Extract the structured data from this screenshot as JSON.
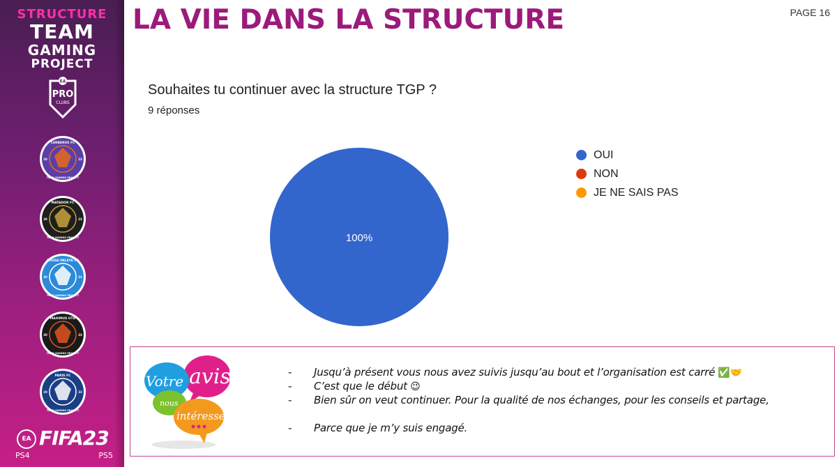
{
  "sidebar": {
    "brand": {
      "line1": "STRUCTURE",
      "line2": "TEAM",
      "line3": "GAMING",
      "line4": "PROJECT"
    },
    "pro_clubs": {
      "top": "EA",
      "text": "PRO",
      "sub": "CLUBS"
    },
    "clubs": [
      {
        "name": "CERBERUS FC",
        "year_left": "20",
        "year_right": "23",
        "ring": "TEAM GAMING PROJECT",
        "color": "#5b3fa6",
        "accent": "#e86a1c"
      },
      {
        "name": "MATADOR FC",
        "year_left": "20",
        "year_right": "23",
        "ring": "TEAM GAMING PROJECT",
        "color": "#1e1e1e",
        "accent": "#c9a23a"
      },
      {
        "name": "ROUGE PALEYE FC",
        "year_left": "20",
        "year_right": "23",
        "ring": "TEAM GAMING PROJECT",
        "color": "#2d8ad8",
        "accent": "#ffffff"
      },
      {
        "name": "MAXIMUS UTD",
        "year_left": "20",
        "year_right": "23",
        "ring": "TEAM GAMING PROJECT",
        "color": "#1a1a1a",
        "accent": "#e0541c"
      },
      {
        "name": "PARIS FC",
        "year_left": "20",
        "year_right": "23",
        "ring": "TEAM GAMING PROJECT",
        "color": "#1b3f86",
        "accent": "#ffffff"
      }
    ],
    "game": {
      "ea": "EA",
      "title": "FIFA23",
      "platform1": "PS4",
      "platform2": "PS5"
    }
  },
  "header": {
    "title": "LA VIE DANS LA STRUCTURE",
    "page": "PAGE 16"
  },
  "survey": {
    "question": "Souhaites tu continuer avec la structure TGP ?",
    "responses": "9 réponses"
  },
  "chart_data": {
    "type": "pie",
    "categories": [
      "OUI",
      "NON",
      "JE NE SAIS PAS"
    ],
    "values": [
      100,
      0,
      0
    ],
    "colors": [
      "#3366cc",
      "#dc3912",
      "#ff9900"
    ],
    "labels": [
      "100%"
    ],
    "legend": "right"
  },
  "feedback": {
    "image_text": {
      "votre": "Votre",
      "avis": "avis",
      "nous": "nous",
      "interesse": "intéresse"
    },
    "comments": [
      {
        "dash": "-",
        "text": "Jusqu’à présent vous nous avez suivis jusqu’au bout et l’organisation est carré",
        "emoji": "✅🤝"
      },
      {
        "dash": "-",
        "text": "C’est que le début",
        "emoji": "😉"
      },
      {
        "dash": "-",
        "text": "Bien sûr on veut continuer. Pour la qualité de nos échanges, pour les conseils et partage,",
        "emoji": ""
      },
      {
        "dash": "-",
        "text": "Parce que je m’y suis engagé.",
        "emoji": ""
      }
    ]
  }
}
